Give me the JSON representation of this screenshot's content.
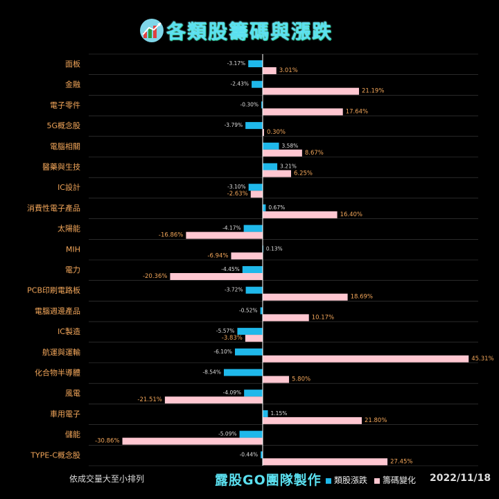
{
  "title": "各類股籌碼與漲跌",
  "footer": {
    "note": "依成交量大至小排列",
    "brand": "露股GO團隊製作",
    "date": "2022/11/18"
  },
  "colors": {
    "price_bar": "#1fb8ea",
    "chip_bar": "#ffc7d1",
    "category_label": "#f2a65a",
    "price_label": "#dddddd",
    "chip_label": "#f2a65a",
    "axis": "#ffffff",
    "grid": "#444444"
  },
  "chart_data": {
    "type": "bar",
    "orientation": "horizontal",
    "categories": [
      "面板",
      "金融",
      "電子零件",
      "5G概念股",
      "電腦相關",
      "醫藥與生技",
      "IC設計",
      "消費性電子產品",
      "太陽能",
      "MIH",
      "電力",
      "PCB印刷電路板",
      "電腦週邊產品",
      "IC製造",
      "航運與運輸",
      "化合物半導體",
      "風電",
      "車用電子",
      "儲能",
      "TYPE-C概念股"
    ],
    "series": [
      {
        "name": "類股漲跌",
        "values": [
          -3.17,
          -2.43,
          -0.3,
          -3.79,
          3.58,
          3.21,
          -3.1,
          0.67,
          -4.17,
          0.13,
          -4.45,
          -3.72,
          -0.52,
          -5.57,
          -6.1,
          -8.54,
          -4.09,
          1.15,
          -5.09,
          -0.44
        ],
        "labels": [
          "-3.17%",
          "-2.43%",
          "-0.30%",
          "-3.79%",
          "3.58%",
          "3.21%",
          "-3.10%",
          "0.67%",
          "-4.17%",
          "0.13%",
          "-4.45%",
          "-3.72%",
          "-0.52%",
          "-5.57%",
          "-6.10%",
          "-8.54%",
          "-4.09%",
          "1.15%",
          "-5.09%",
          "-0.44%"
        ]
      },
      {
        "name": "籌碼變化",
        "values": [
          3.01,
          21.19,
          17.64,
          0.3,
          8.67,
          6.25,
          -2.63,
          16.4,
          -16.86,
          -6.94,
          -20.36,
          18.69,
          10.17,
          -3.83,
          45.31,
          5.8,
          -21.51,
          21.8,
          -30.86,
          27.45
        ],
        "labels": [
          "3.01%",
          "21.19%",
          "17.64%",
          "0.30%",
          "8.67%",
          "6.25%",
          "-2.63%",
          "16.40%",
          "-16.86%",
          "-6.94%",
          "-20.36%",
          "18.69%",
          "10.17%",
          "-3.83%",
          "45.31%",
          "5.80%",
          "-21.51%",
          "21.80%",
          "-30.86%",
          "27.45%"
        ]
      }
    ],
    "legend_position": "bottom-right",
    "grid": true
  }
}
